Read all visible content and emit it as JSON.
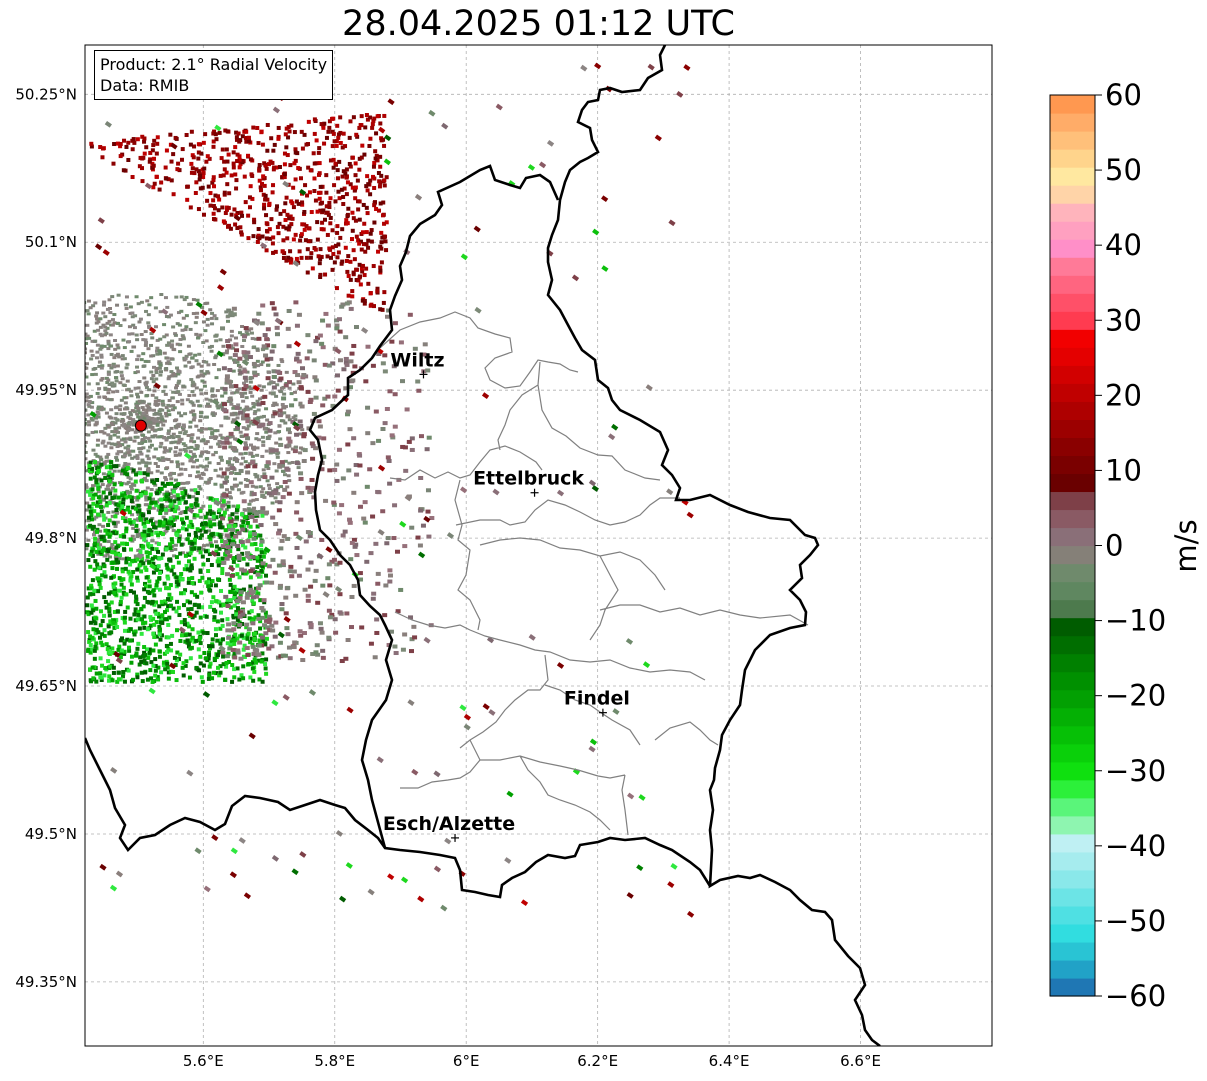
{
  "title": "28.04.2025 01:12 UTC",
  "info": {
    "product": "Product: 2.1° Radial Velocity",
    "data": "Data: RMIB"
  },
  "map": {
    "lon_range": [
      5.42,
      6.8
    ],
    "lat_range": [
      49.285,
      50.3
    ],
    "lon_ticks": [
      {
        "value": 5.6,
        "label": "5.6°E"
      },
      {
        "value": 5.8,
        "label": "5.8°E"
      },
      {
        "value": 6.0,
        "label": "6°E"
      },
      {
        "value": 6.2,
        "label": "6.2°E"
      },
      {
        "value": 6.4,
        "label": "6.4°E"
      },
      {
        "value": 6.6,
        "label": "6.6°E"
      }
    ],
    "lat_ticks": [
      {
        "value": 50.25,
        "label": "50.25°N"
      },
      {
        "value": 50.1,
        "label": "50.1°N"
      },
      {
        "value": 49.95,
        "label": "49.95°N"
      },
      {
        "value": 49.8,
        "label": "49.8°N"
      },
      {
        "value": 49.65,
        "label": "49.65°N"
      },
      {
        "value": 49.5,
        "label": "49.5°N"
      },
      {
        "value": 49.35,
        "label": "49.35°N"
      }
    ],
    "grid": true,
    "radar_site": {
      "lon": 5.505,
      "lat": 49.914,
      "color": "#e00000"
    },
    "cities": [
      {
        "name": "Wiltz",
        "lon": 5.935,
        "lat": 49.966
      },
      {
        "name": "Ettelbruck",
        "lon": 6.104,
        "lat": 49.846
      },
      {
        "name": "Findel",
        "lon": 6.208,
        "lat": 49.623
      },
      {
        "name": "Esch/Alzette",
        "lon": 5.983,
        "lat": 49.496
      }
    ]
  },
  "colorbar": {
    "label": "m/s",
    "min": -60,
    "max": 60,
    "ticks": [
      {
        "value": 60,
        "label": "60"
      },
      {
        "value": 50,
        "label": "50"
      },
      {
        "value": 40,
        "label": "40"
      },
      {
        "value": 30,
        "label": "30"
      },
      {
        "value": 20,
        "label": "20"
      },
      {
        "value": 10,
        "label": "10"
      },
      {
        "value": 0,
        "label": "0"
      },
      {
        "value": -10,
        "label": "−10"
      },
      {
        "value": -20,
        "label": "−20"
      },
      {
        "value": -30,
        "label": "−30"
      },
      {
        "value": -40,
        "label": "−40"
      },
      {
        "value": -50,
        "label": "−50"
      },
      {
        "value": -60,
        "label": "−60"
      }
    ],
    "colors": [
      "#1f77b4",
      "#21a2c7",
      "#29c4d4",
      "#31dde0",
      "#4fe0e3",
      "#6ce4e6",
      "#8ae8ea",
      "#a6ecee",
      "#bff0f3",
      "#8ef5b0",
      "#5af57a",
      "#2cf03a",
      "#0fe00f",
      "#0ad00a",
      "#06c006",
      "#04b004",
      "#02a002",
      "#009000",
      "#008000",
      "#006e00",
      "#005c00",
      "#4d7a4d",
      "#5f8760",
      "#6f8a6c",
      "#858078",
      "#8a6f78",
      "#8a5a64",
      "#7e4048",
      "#6a0000",
      "#7a0000",
      "#8a0000",
      "#9c0000",
      "#ae0000",
      "#c00000",
      "#d20000",
      "#e40000",
      "#f20000",
      "#ff3b50",
      "#ff5068",
      "#ff6580",
      "#ff7a98",
      "#ff8fc8",
      "#ffa0c0",
      "#ffb4bc",
      "#ffd4a8",
      "#ffe8a0",
      "#ffd48c",
      "#ffc07a",
      "#ffac68",
      "#ff9850"
    ]
  }
}
